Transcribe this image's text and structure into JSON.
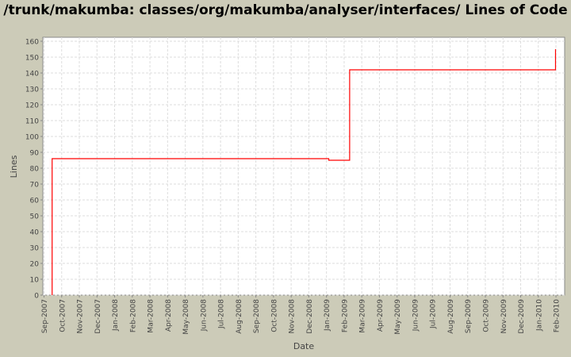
{
  "chart_data": {
    "type": "line",
    "step": true,
    "title": "/trunk/makumba: classes/org/makumba/analyser/interfaces/ Lines of Code",
    "xlabel": "Date",
    "ylabel": "Lines",
    "ylim": [
      0,
      162
    ],
    "yticks": [
      0,
      10,
      20,
      30,
      40,
      50,
      60,
      70,
      80,
      90,
      100,
      110,
      120,
      130,
      140,
      150,
      160
    ],
    "xticks": [
      "Sep-2007",
      "Oct-2007",
      "Nov-2007",
      "Dec-2007",
      "Jan-2008",
      "Feb-2008",
      "Mar-2008",
      "Apr-2008",
      "May-2008",
      "Jun-2008",
      "Jul-2008",
      "Aug-2008",
      "Sep-2008",
      "Oct-2008",
      "Nov-2008",
      "Dec-2008",
      "Jan-2009",
      "Feb-2009",
      "Mar-2009",
      "Apr-2009",
      "May-2009",
      "Jun-2009",
      "Jul-2009",
      "Aug-2009",
      "Sep-2009",
      "Oct-2009",
      "Nov-2009",
      "Dec-2009",
      "Jan-2010",
      "Feb-2010"
    ],
    "grid": true,
    "series": [
      {
        "color": "#ff0000",
        "points": [
          [
            "2007-09-15",
            0
          ],
          [
            "2007-09-15",
            86
          ],
          [
            "2009-01-04",
            85
          ],
          [
            "2009-02-09",
            142
          ],
          [
            "2010-01-30",
            155
          ]
        ]
      }
    ]
  }
}
